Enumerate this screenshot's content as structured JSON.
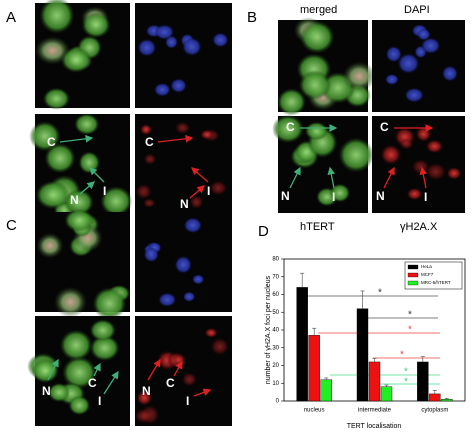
{
  "panels": [
    {
      "label": "A",
      "annotations": [
        "C",
        "I",
        "N",
        "C",
        "I",
        "N"
      ]
    },
    {
      "label": "B",
      "headers": [
        "merged",
        "DAPI"
      ],
      "footers": [
        "hTERT",
        "γH2A.X"
      ],
      "annotations": [
        "C",
        "N",
        "I",
        "C",
        "N",
        "I"
      ]
    },
    {
      "label": "C",
      "annotations": [
        "N",
        "C",
        "I",
        "N",
        "C",
        "I"
      ]
    },
    {
      "label": "D"
    }
  ],
  "chart_data": {
    "type": "bar",
    "y_label": "number of γH2A.X foci per nucleus",
    "x_label": "TERT localisation",
    "categories": [
      "nucleus",
      "intermediate",
      "cytoplasm"
    ],
    "series": [
      {
        "name": "HeLa",
        "color": "#000000",
        "values": [
          64,
          52,
          22
        ],
        "errors": [
          8,
          10,
          3
        ]
      },
      {
        "name": "MCF7",
        "color": "#ee1111",
        "values": [
          37,
          22,
          4
        ],
        "errors": [
          4,
          2,
          2
        ]
      },
      {
        "name": "MRC-5/hTERT",
        "color": "#22ee22",
        "values": [
          12,
          8,
          1
        ],
        "errors": [
          1,
          1,
          0.5
        ]
      }
    ],
    "ylim": [
      0,
      80
    ],
    "yticks": [
      0,
      10,
      20,
      30,
      40,
      50,
      60,
      70,
      80
    ],
    "annotations": [
      "*",
      "*",
      "*",
      "*",
      "*",
      "*"
    ],
    "legend": "upper right"
  }
}
